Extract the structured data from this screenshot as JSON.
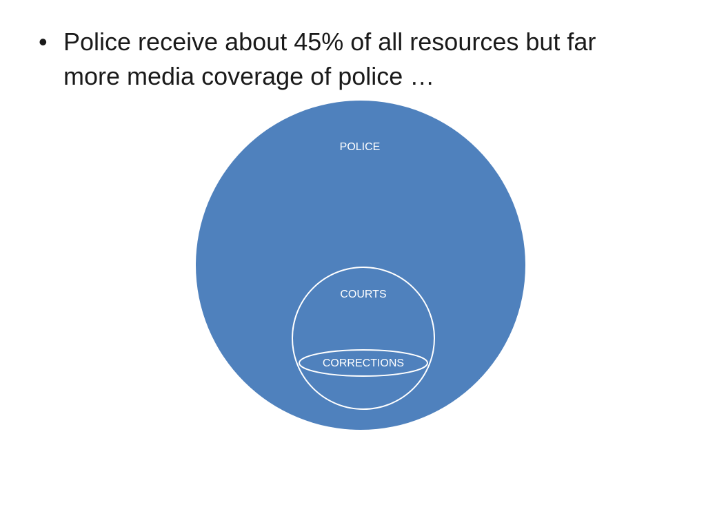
{
  "slide": {
    "bullets": [
      {
        "marker": "•",
        "text": "Police receive about 45% of all resources but far more media coverage of police …"
      }
    ]
  },
  "diagram": {
    "fill_color": "#4f81bd",
    "line_color": "#ffffff",
    "circles": [
      {
        "label": "POLICE"
      },
      {
        "label": "COURTS"
      },
      {
        "label": "CORRECTIONS"
      }
    ]
  }
}
